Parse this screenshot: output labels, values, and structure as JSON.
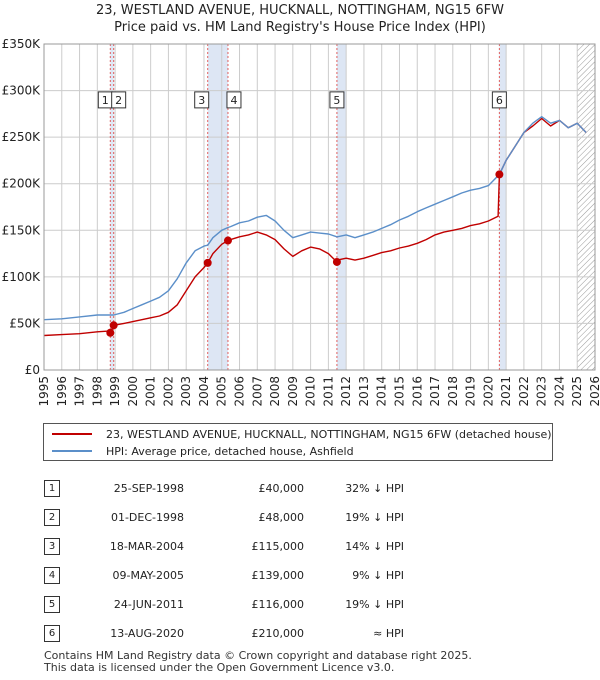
{
  "title": "23, WESTLAND AVENUE, HUCKNALL, NOTTINGHAM, NG15 6FW",
  "subtitle": "Price paid vs. HM Land Registry's House Price Index (HPI)",
  "colors": {
    "property": "#c00000",
    "hpi": "#5b8fc9",
    "shade": "#dde6f4",
    "grid": "#cccccc"
  },
  "chart_data": {
    "type": "line",
    "xlim": [
      1995,
      2026
    ],
    "ylim": [
      0,
      350000
    ],
    "y_ticks": [
      {
        "value": 0,
        "label": "£0"
      },
      {
        "value": 50000,
        "label": "£50K"
      },
      {
        "value": 100000,
        "label": "£100K"
      },
      {
        "value": 150000,
        "label": "£150K"
      },
      {
        "value": 200000,
        "label": "£200K"
      },
      {
        "value": 250000,
        "label": "£250K"
      },
      {
        "value": 300000,
        "label": "£300K"
      },
      {
        "value": 350000,
        "label": "£350K"
      }
    ],
    "x_ticks": [
      "1995",
      "1996",
      "1997",
      "1998",
      "1999",
      "2000",
      "2001",
      "2002",
      "2003",
      "2004",
      "2005",
      "2006",
      "2007",
      "2008",
      "2009",
      "2010",
      "2011",
      "2012",
      "2013",
      "2014",
      "2015",
      "2016",
      "2017",
      "2018",
      "2019",
      "2020",
      "2021",
      "2022",
      "2023",
      "2024",
      "2025",
      "2026"
    ],
    "series": [
      {
        "name": "23, WESTLAND AVENUE, HUCKNALL, NOTTINGHAM, NG15 6FW (detached house)",
        "color": "#c00000",
        "x": [
          1995.0,
          1996.0,
          1997.0,
          1998.0,
          1998.73,
          1998.75,
          1998.92,
          1999.5,
          2000.0,
          2000.5,
          2001.0,
          2001.5,
          2002.0,
          2002.5,
          2003.0,
          2003.5,
          2004.0,
          2004.21,
          2004.5,
          2005.0,
          2005.35,
          2005.5,
          2006.0,
          2006.5,
          2007.0,
          2007.5,
          2008.0,
          2008.5,
          2009.0,
          2009.5,
          2010.0,
          2010.5,
          2011.0,
          2011.48,
          2011.5,
          2012.0,
          2012.5,
          2013.0,
          2013.5,
          2014.0,
          2014.5,
          2015.0,
          2015.5,
          2016.0,
          2016.5,
          2017.0,
          2017.5,
          2018.0,
          2018.5,
          2019.0,
          2019.5,
          2020.0,
          2020.55,
          2020.62,
          2021.0,
          2021.5,
          2022.0,
          2022.5,
          2023.0,
          2023.5,
          2024.0,
          2024.5,
          2025.0,
          2025.5
        ],
        "y": [
          37000,
          38000,
          39000,
          41000,
          42000,
          40000,
          48000,
          50000,
          52000,
          54000,
          56000,
          58000,
          62000,
          70000,
          85000,
          100000,
          110000,
          115000,
          125000,
          135000,
          139000,
          140000,
          143000,
          145000,
          148000,
          145000,
          140000,
          130000,
          122000,
          128000,
          132000,
          130000,
          125000,
          116000,
          118000,
          120000,
          118000,
          120000,
          123000,
          126000,
          128000,
          131000,
          133000,
          136000,
          140000,
          145000,
          148000,
          150000,
          152000,
          155000,
          157000,
          160000,
          165000,
          210000,
          225000,
          240000,
          255000,
          262000,
          270000,
          262000,
          268000,
          260000,
          265000,
          255000
        ]
      },
      {
        "name": "HPI: Average price, detached house, Ashfield",
        "color": "#5b8fc9",
        "x": [
          1995.0,
          1996.0,
          1997.0,
          1998.0,
          1998.73,
          1998.92,
          1999.5,
          2000.0,
          2000.5,
          2001.0,
          2001.5,
          2002.0,
          2002.5,
          2003.0,
          2003.5,
          2004.0,
          2004.21,
          2004.5,
          2005.0,
          2005.35,
          2005.5,
          2006.0,
          2006.5,
          2007.0,
          2007.5,
          2008.0,
          2008.5,
          2009.0,
          2009.5,
          2010.0,
          2010.5,
          2011.0,
          2011.48,
          2011.5,
          2012.0,
          2012.5,
          2013.0,
          2013.5,
          2014.0,
          2014.5,
          2015.0,
          2015.5,
          2016.0,
          2016.5,
          2017.0,
          2017.5,
          2018.0,
          2018.5,
          2019.0,
          2019.5,
          2020.0,
          2020.62,
          2021.0,
          2021.5,
          2022.0,
          2022.5,
          2023.0,
          2023.5,
          2024.0,
          2024.5,
          2025.0,
          2025.5
        ],
        "y": [
          54000,
          55000,
          57000,
          59000,
          59000,
          59000,
          62000,
          66000,
          70000,
          74000,
          78000,
          85000,
          98000,
          115000,
          128000,
          133000,
          134000,
          142000,
          150000,
          153000,
          154000,
          158000,
          160000,
          164000,
          166000,
          160000,
          150000,
          142000,
          145000,
          148000,
          147000,
          146000,
          143000,
          143000,
          145000,
          142000,
          145000,
          148000,
          152000,
          156000,
          161000,
          165000,
          170000,
          174000,
          178000,
          182000,
          186000,
          190000,
          193000,
          195000,
          198000,
          210000,
          225000,
          240000,
          255000,
          265000,
          272000,
          265000,
          268000,
          260000,
          265000,
          255000
        ]
      }
    ],
    "sales": [
      {
        "n": "1",
        "date": "25-SEP-1998",
        "x": 1998.73,
        "price": 40000
      },
      {
        "n": "2",
        "date": "01-DEC-1998",
        "x": 1998.92,
        "price": 48000
      },
      {
        "n": "3",
        "date": "18-MAR-2004",
        "x": 2004.21,
        "price": 115000
      },
      {
        "n": "4",
        "date": "09-MAY-2005",
        "x": 2005.35,
        "price": 139000
      },
      {
        "n": "5",
        "date": "24-JUN-2011",
        "x": 2011.48,
        "price": 116000
      },
      {
        "n": "6",
        "date": "13-AUG-2020",
        "x": 2020.62,
        "price": 210000
      }
    ],
    "marker_label_value": 290000,
    "shaded_spans": [
      [
        1998.73,
        1998.92
      ],
      [
        2004.21,
        2005.35
      ],
      [
        2011.48,
        2012.0
      ],
      [
        2020.62,
        2021.0
      ]
    ],
    "hatch_from": 2025.0
  },
  "legend": {
    "property": "23, WESTLAND AVENUE, HUCKNALL, NOTTINGHAM, NG15 6FW (detached house)",
    "hpi": "HPI: Average price, detached house, Ashfield"
  },
  "table": [
    {
      "n": "1",
      "date": "25-SEP-1998",
      "price": "£40,000",
      "hpi": "32% ↓ HPI"
    },
    {
      "n": "2",
      "date": "01-DEC-1998",
      "price": "£48,000",
      "hpi": "19% ↓ HPI"
    },
    {
      "n": "3",
      "date": "18-MAR-2004",
      "price": "£115,000",
      "hpi": "14% ↓ HPI"
    },
    {
      "n": "4",
      "date": "09-MAY-2005",
      "price": "£139,000",
      "hpi": "9% ↓ HPI"
    },
    {
      "n": "5",
      "date": "24-JUN-2011",
      "price": "£116,000",
      "hpi": "19% ↓ HPI"
    },
    {
      "n": "6",
      "date": "13-AUG-2020",
      "price": "£210,000",
      "hpi": "≈ HPI"
    }
  ],
  "footer": {
    "line1": "Contains HM Land Registry data © Crown copyright and database right 2025.",
    "line2": "This data is licensed under the Open Government Licence v3.0."
  }
}
